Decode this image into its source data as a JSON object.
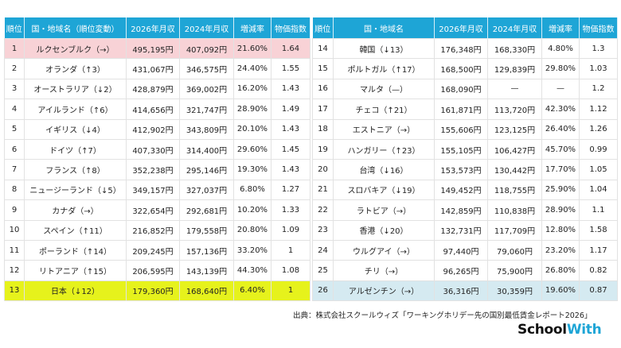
{
  "left_table": {
    "headers": [
      "順位",
      "国・地域名（順位変動）",
      "2026年月収",
      "2024年月収",
      "増減率",
      "物価指数"
    ],
    "rows": [
      [
        "1",
        "ルクセンブルク（→）",
        "495,195円",
        "407,092円",
        "21.60%",
        "1.64"
      ],
      [
        "2",
        "オランダ（↑3）",
        "431,067円",
        "346,575円",
        "24.40%",
        "1.55"
      ],
      [
        "3",
        "オーストラリア（↓2）",
        "428,879円",
        "369,002円",
        "16.20%",
        "1.43"
      ],
      [
        "4",
        "アイルランド（↑6）",
        "414,656円",
        "321,747円",
        "28.90%",
        "1.49"
      ],
      [
        "5",
        "イギリス（↓4）",
        "412,902円",
        "343,809円",
        "20.10%",
        "1.43"
      ],
      [
        "6",
        "ドイツ（↑7）",
        "407,330円",
        "314,400円",
        "29.60%",
        "1.45"
      ],
      [
        "7",
        "フランス（↑8）",
        "352,238円",
        "295,146円",
        "19.30%",
        "1.43"
      ],
      [
        "8",
        "ニュージーランド（↓5）",
        "349,157円",
        "327,037円",
        "6.80%",
        "1.27"
      ],
      [
        "9",
        "カナダ（→）",
        "322,654円",
        "292,681円",
        "10.20%",
        "1.33"
      ],
      [
        "10",
        "スペイン（↑11）",
        "216,852円",
        "179,558円",
        "20.80%",
        "1.09"
      ],
      [
        "11",
        "ポーランド（↑14）",
        "209,245円",
        "157,136円",
        "33.20%",
        "1"
      ],
      [
        "12",
        "リトアニア（↑15）",
        "206,595円",
        "143,139円",
        "44.30%",
        "1.08"
      ],
      [
        "13",
        "日本（↓12）",
        "179,360円",
        "168,640円",
        "6.40%",
        "1"
      ]
    ],
    "highlights": {
      "0": "pink",
      "12": "yellow"
    }
  },
  "right_table": {
    "headers": [
      "順位",
      "国・地域名",
      "2026年月収",
      "2024年月収",
      "増減率",
      "物価指数"
    ],
    "rows": [
      [
        "14",
        "韓国（↓13）",
        "176,348円",
        "168,330円",
        "4.80%",
        "1.3"
      ],
      [
        "15",
        "ポルトガル（↑17）",
        "168,500円",
        "129,839円",
        "29.80%",
        "1.03"
      ],
      [
        "16",
        "マルタ（—）",
        "168,090円",
        "—",
        "—",
        "1.2"
      ],
      [
        "17",
        "チェコ（↑21）",
        "161,871円",
        "113,720円",
        "42.30%",
        "1.12"
      ],
      [
        "18",
        "エストニア（→）",
        "155,606円",
        "123,125円",
        "26.40%",
        "1.26"
      ],
      [
        "19",
        "ハンガリー（↑23）",
        "155,105円",
        "106,427円",
        "45.70%",
        "0.99"
      ],
      [
        "20",
        "台湾（↓16）",
        "153,573円",
        "130,442円",
        "17.70%",
        "1.05"
      ],
      [
        "21",
        "スロバキア（↓19）",
        "149,452円",
        "118,755円",
        "25.90%",
        "1.04"
      ],
      [
        "22",
        "ラトビア（→）",
        "142,859円",
        "110,838円",
        "28.90%",
        "1.1"
      ],
      [
        "23",
        "香港（↓20）",
        "132,731円",
        "117,709円",
        "12.80%",
        "1.58"
      ],
      [
        "24",
        "ウルグアイ（→）",
        "97,440円",
        "79,060円",
        "23.20%",
        "1.17"
      ],
      [
        "25",
        "チリ（→）",
        "96,265円",
        "75,900円",
        "26.80%",
        "0.82"
      ],
      [
        "26",
        "アルゼンチン（→）",
        "36,316円",
        "30,359円",
        "19.60%",
        "0.87"
      ]
    ],
    "highlights": {
      "12": "blue"
    }
  },
  "source": "出典：株式会社スクールウィズ「ワーキングホリデー先の国別最低賃金レポート2026」",
  "logo": {
    "part1": "School",
    "part2": "With"
  },
  "colors": {
    "header": "#1ea5d6",
    "pink": "#f8d2d6",
    "yellow": "#e6f21c",
    "blue": "#d5eaf1"
  }
}
